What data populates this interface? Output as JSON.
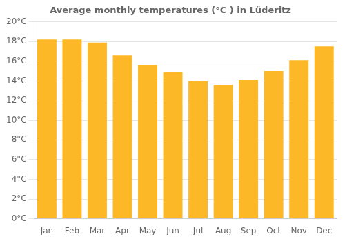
{
  "chart_data": {
    "type": "bar",
    "title": "Average monthly temperatures (°C ) in Lüderitz",
    "categories": [
      "Jan",
      "Feb",
      "Mar",
      "Apr",
      "May",
      "Jun",
      "Jul",
      "Aug",
      "Sep",
      "Oct",
      "Nov",
      "Dec"
    ],
    "values": [
      18.2,
      18.2,
      17.9,
      16.6,
      15.6,
      14.9,
      14.0,
      13.6,
      14.1,
      15.0,
      16.1,
      17.5
    ],
    "color": "#FDB827",
    "ylim": [
      0,
      20
    ],
    "yticks": [
      {
        "value": 0,
        "label": "0°C"
      },
      {
        "value": 2,
        "label": "2°C"
      },
      {
        "value": 4,
        "label": "4°C"
      },
      {
        "value": 6,
        "label": "6°C"
      },
      {
        "value": 8,
        "label": "8°C"
      },
      {
        "value": 10,
        "label": "10°C"
      },
      {
        "value": 12,
        "label": "12°C"
      },
      {
        "value": 14,
        "label": "14°C"
      },
      {
        "value": 16,
        "label": "16°C"
      },
      {
        "value": 18,
        "label": "18°C"
      },
      {
        "value": 20,
        "label": "20°C"
      }
    ],
    "grid": true
  }
}
